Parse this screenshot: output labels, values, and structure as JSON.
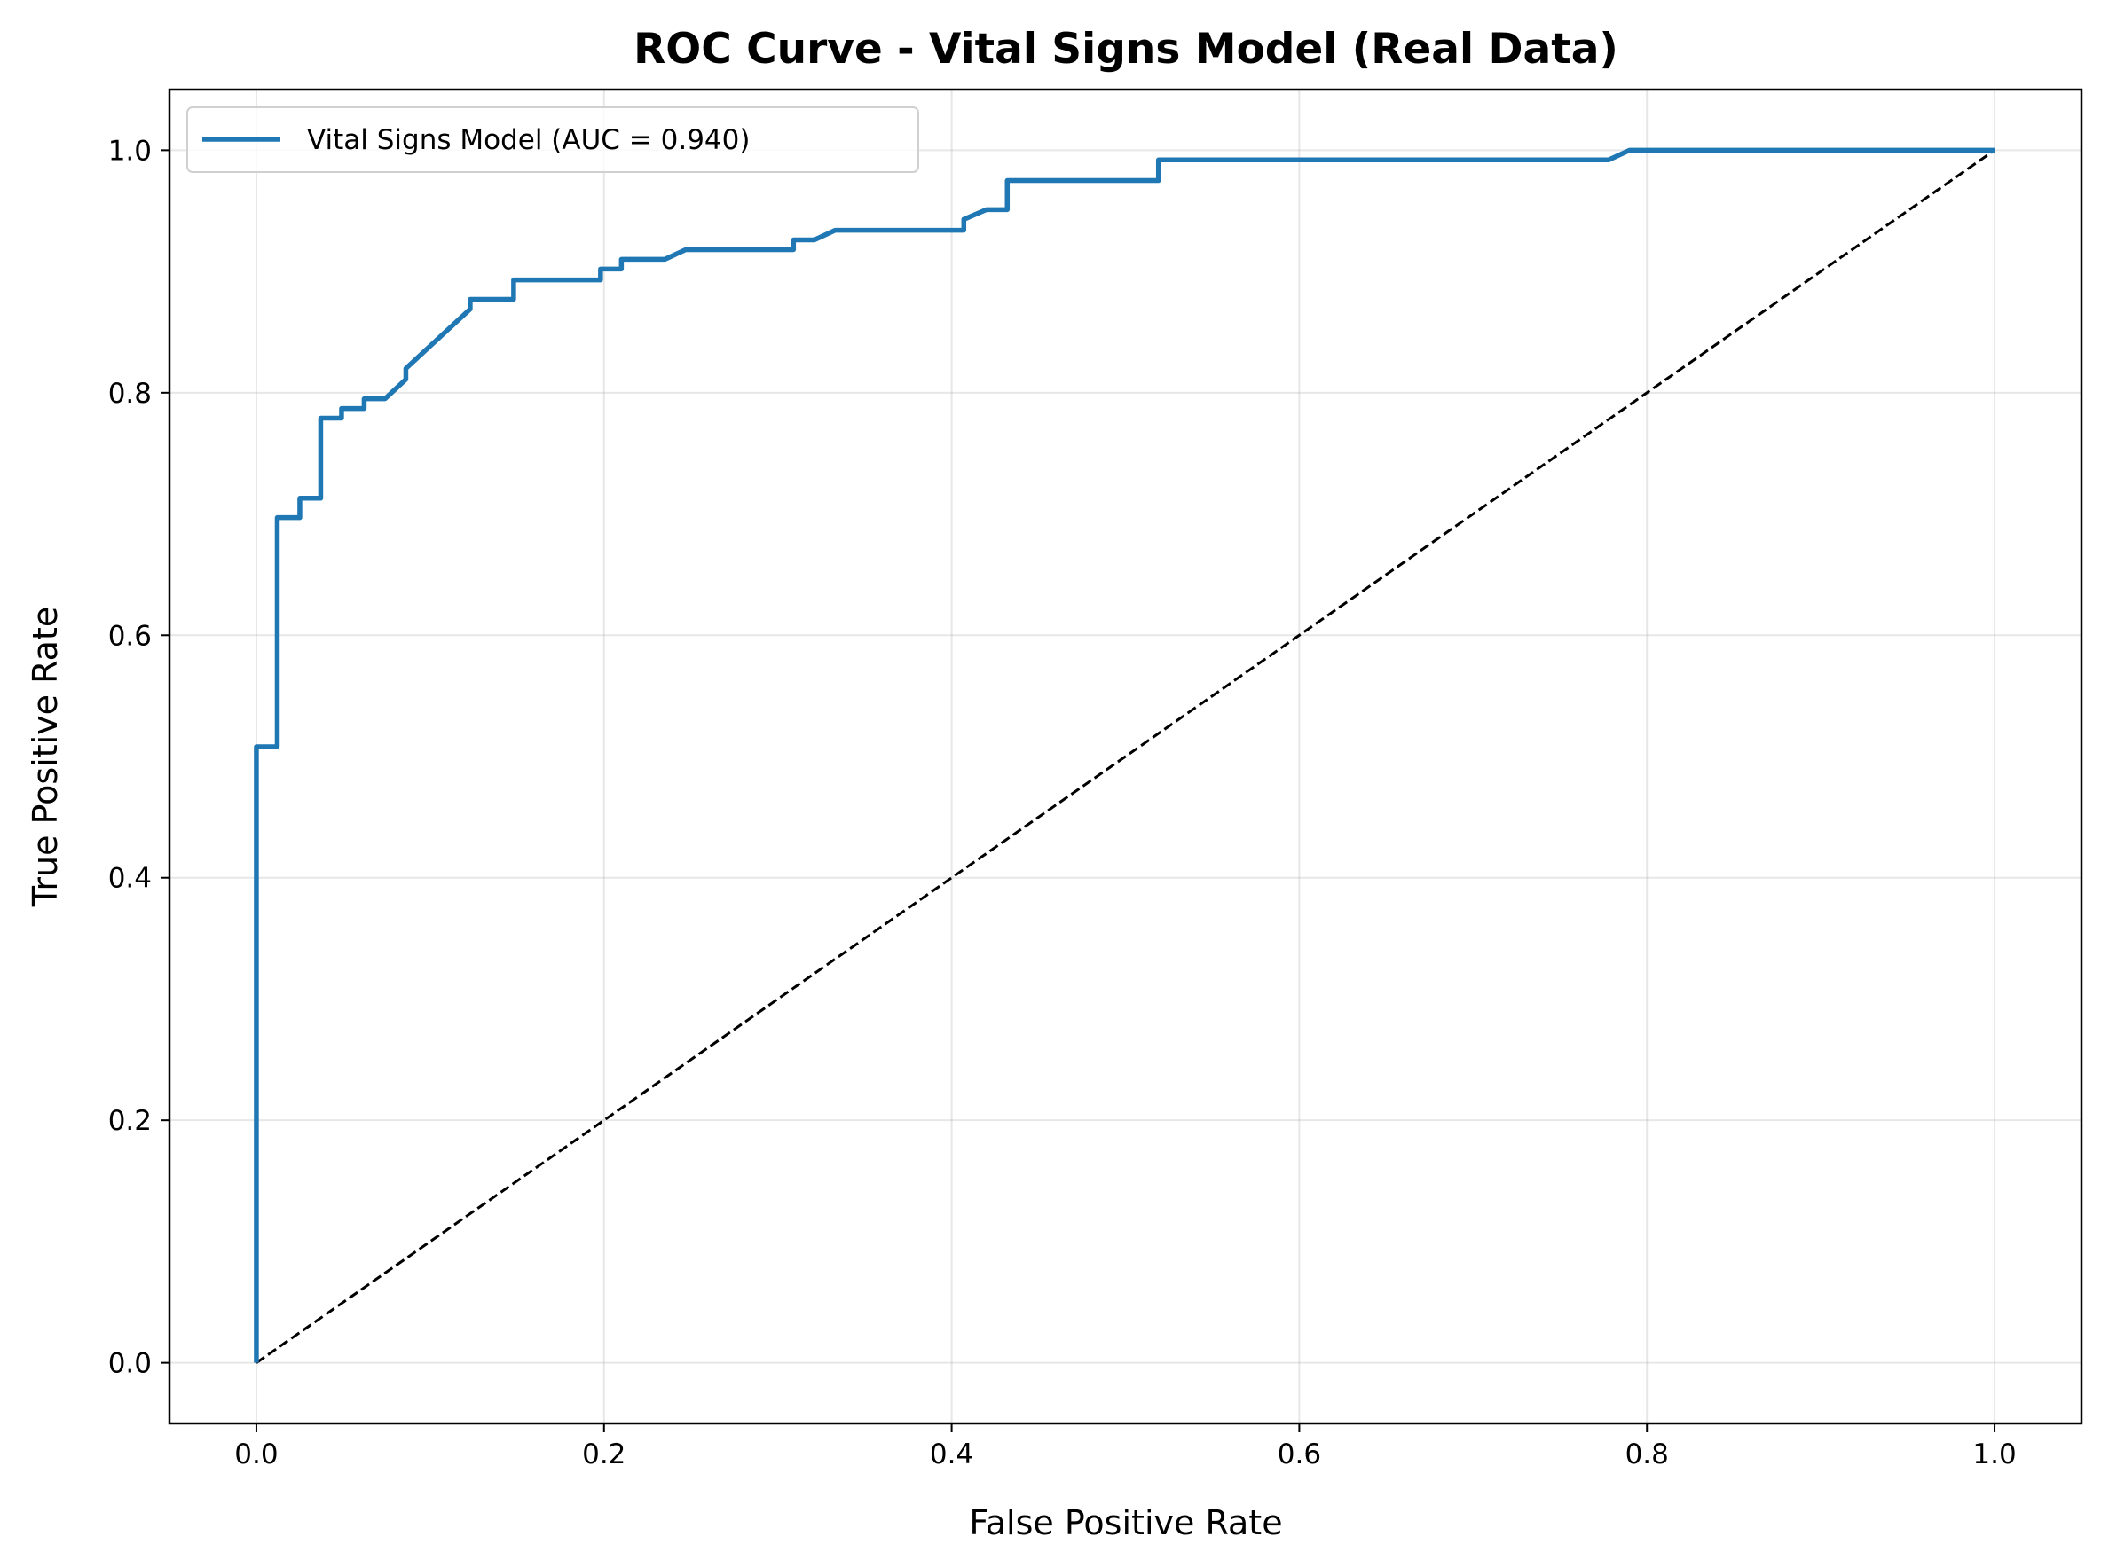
{
  "chart_data": {
    "type": "line",
    "title": "ROC Curve - Vital Signs Model (Real Data)",
    "xlabel": "False Positive Rate",
    "ylabel": "True Positive Rate",
    "xlim": [
      -0.05,
      1.05
    ],
    "ylim": [
      -0.05,
      1.05
    ],
    "x_ticks": [
      0.0,
      0.2,
      0.4,
      0.6,
      0.8,
      1.0
    ],
    "x_tick_labels": [
      "0.0",
      "0.2",
      "0.4",
      "0.6",
      "0.8",
      "1.0"
    ],
    "y_ticks": [
      0.0,
      0.2,
      0.4,
      0.6,
      0.8,
      1.0
    ],
    "y_tick_labels": [
      "0.0",
      "0.2",
      "0.4",
      "0.6",
      "0.8",
      "1.0"
    ],
    "grid": true,
    "legend_position": "top-left",
    "series": [
      {
        "name": "Vital Signs Model (AUC = 0.940)",
        "color": "#1f77b4",
        "style": "solid",
        "x": [
          0.0,
          0.0,
          0.012,
          0.012,
          0.025,
          0.025,
          0.037,
          0.037,
          0.049,
          0.049,
          0.062,
          0.062,
          0.074,
          0.086,
          0.086,
          0.123,
          0.123,
          0.148,
          0.148,
          0.198,
          0.198,
          0.21,
          0.21,
          0.235,
          0.247,
          0.309,
          0.309,
          0.321,
          0.333,
          0.407,
          0.407,
          0.42,
          0.432,
          0.432,
          0.519,
          0.519,
          0.778,
          0.79,
          1.0
        ],
        "y": [
          0.0,
          0.508,
          0.508,
          0.697,
          0.697,
          0.713,
          0.713,
          0.779,
          0.779,
          0.787,
          0.787,
          0.795,
          0.795,
          0.811,
          0.82,
          0.869,
          0.877,
          0.877,
          0.893,
          0.893,
          0.902,
          0.902,
          0.91,
          0.91,
          0.918,
          0.918,
          0.926,
          0.926,
          0.934,
          0.934,
          0.943,
          0.951,
          0.951,
          0.975,
          0.975,
          0.992,
          0.992,
          1.0,
          1.0
        ]
      },
      {
        "color": "#000000",
        "style": "dashed",
        "x": [
          0.0,
          1.0
        ],
        "y": [
          0.0,
          1.0
        ]
      }
    ]
  },
  "legend": {
    "label": "Vital Signs Model (AUC = 0.940)"
  }
}
